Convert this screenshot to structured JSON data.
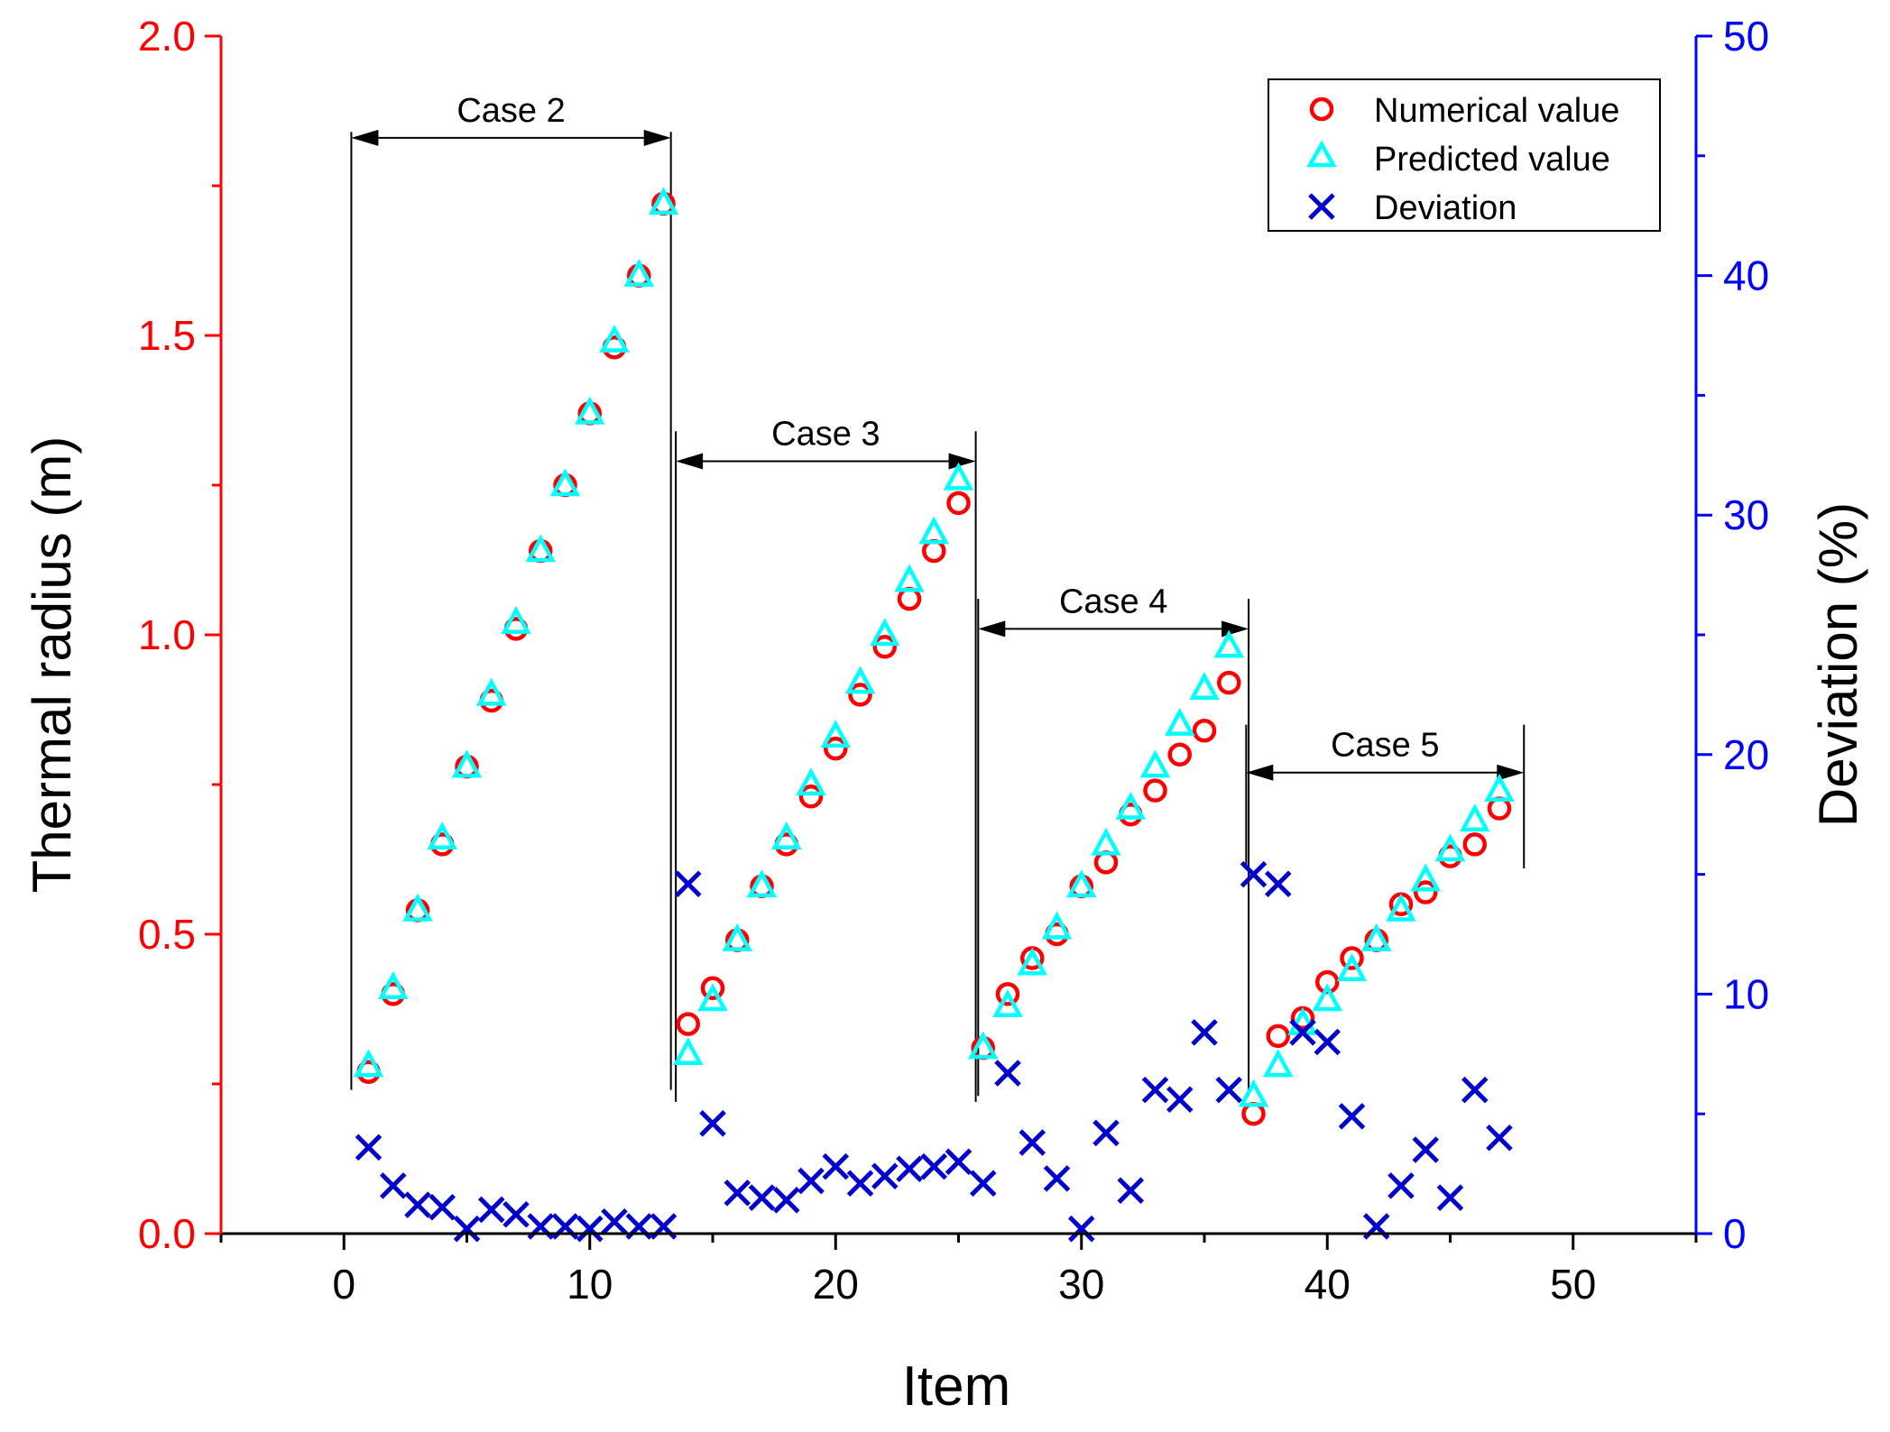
{
  "colors": {
    "left_axis": "#ff0000",
    "right_axis": "#0000ff",
    "numerical": "#ff0000",
    "predicted": "#00ffff",
    "deviation": "#0000cc",
    "text": "#000000"
  },
  "chart_data": {
    "type": "scatter",
    "xlabel": "Item",
    "ylabel_left": "Thermal radius (m)",
    "ylabel_right": "Deviation (%)",
    "xlim": [
      -5,
      55
    ],
    "ylim_left": [
      0.0,
      2.0
    ],
    "ylim_right": [
      0,
      50
    ],
    "x_ticks": [
      0,
      10,
      20,
      30,
      40,
      50
    ],
    "y_left_ticks": [
      "0.0",
      "0.5",
      "1.0",
      "1.5",
      "2.0"
    ],
    "y_left_tick_values": [
      0.0,
      0.5,
      1.0,
      1.5,
      2.0
    ],
    "y_right_ticks": [
      "0",
      "10",
      "20",
      "30",
      "40",
      "50"
    ],
    "y_right_tick_values": [
      0,
      10,
      20,
      30,
      40,
      50
    ],
    "legend": {
      "position": "top-right",
      "entries": [
        "Numerical value",
        "Predicted value",
        "Deviation"
      ]
    },
    "series": [
      {
        "name": "Numerical value",
        "axis": "left",
        "marker": "circle",
        "x": [
          1,
          2,
          3,
          4,
          5,
          6,
          7,
          8,
          9,
          10,
          11,
          12,
          13,
          14,
          15,
          16,
          17,
          18,
          19,
          20,
          21,
          22,
          23,
          24,
          25,
          26,
          27,
          28,
          29,
          30,
          31,
          32,
          33,
          34,
          35,
          36,
          37,
          38,
          39,
          40,
          41,
          42,
          43,
          44,
          45,
          46,
          47
        ],
        "values": [
          0.27,
          0.4,
          0.54,
          0.65,
          0.78,
          0.89,
          1.01,
          1.14,
          1.25,
          1.37,
          1.48,
          1.6,
          1.72,
          0.35,
          0.41,
          0.49,
          0.58,
          0.65,
          0.73,
          0.81,
          0.9,
          0.98,
          1.06,
          1.14,
          1.22,
          0.31,
          0.4,
          0.46,
          0.5,
          0.58,
          0.62,
          0.7,
          0.74,
          0.8,
          0.84,
          0.92,
          0.2,
          0.33,
          0.36,
          0.42,
          0.46,
          0.49,
          0.55,
          0.57,
          0.63,
          0.65,
          0.71
        ]
      },
      {
        "name": "Predicted value",
        "axis": "left",
        "marker": "triangle",
        "x": [
          1,
          2,
          3,
          4,
          5,
          6,
          7,
          8,
          9,
          10,
          11,
          12,
          13,
          14,
          15,
          16,
          17,
          18,
          19,
          20,
          21,
          22,
          23,
          24,
          25,
          26,
          27,
          28,
          29,
          30,
          31,
          32,
          33,
          34,
          35,
          36,
          37,
          38,
          39,
          40,
          41,
          42,
          43,
          44,
          45,
          46,
          47
        ],
        "values": [
          0.28,
          0.41,
          0.54,
          0.66,
          0.78,
          0.9,
          1.02,
          1.14,
          1.25,
          1.37,
          1.49,
          1.6,
          1.72,
          0.3,
          0.39,
          0.49,
          0.58,
          0.66,
          0.75,
          0.83,
          0.92,
          1.0,
          1.09,
          1.17,
          1.26,
          0.31,
          0.38,
          0.45,
          0.51,
          0.58,
          0.65,
          0.71,
          0.78,
          0.85,
          0.91,
          0.98,
          0.23,
          0.28,
          0.35,
          0.39,
          0.44,
          0.49,
          0.54,
          0.59,
          0.64,
          0.69,
          0.74
        ]
      },
      {
        "name": "Deviation",
        "axis": "right",
        "marker": "x",
        "x": [
          1,
          2,
          3,
          4,
          5,
          6,
          7,
          8,
          9,
          10,
          11,
          12,
          13,
          14,
          15,
          16,
          17,
          18,
          19,
          20,
          21,
          22,
          23,
          24,
          25,
          26,
          27,
          28,
          29,
          30,
          31,
          32,
          33,
          34,
          35,
          36,
          37,
          38,
          39,
          40,
          41,
          42,
          43,
          44,
          45,
          46,
          47
        ],
        "values": [
          3.6,
          2.0,
          1.2,
          1.1,
          0.2,
          1.0,
          0.8,
          0.3,
          0.3,
          0.2,
          0.5,
          0.3,
          0.3,
          14.6,
          4.6,
          1.7,
          1.5,
          1.4,
          2.2,
          2.8,
          2.1,
          2.4,
          2.7,
          2.8,
          3.0,
          2.1,
          6.7,
          3.8,
          2.3,
          0.2,
          4.2,
          1.8,
          6.0,
          5.6,
          8.4,
          6.0,
          15.0,
          14.6,
          8.4,
          8.0,
          4.9,
          0.3,
          2.0,
          3.5,
          1.5,
          6.0,
          4.0
        ]
      }
    ],
    "annotations": [
      {
        "label": "Case 2",
        "x_start": 0.3,
        "x_end": 13.3,
        "y": 1.83,
        "y_line_top": 1.84,
        "y_line_bottom": 0.24
      },
      {
        "label": "Case 3",
        "x_start": 13.5,
        "x_end": 25.7,
        "y": 1.29,
        "y_line_top": 1.34,
        "y_line_bottom": 0.22
      },
      {
        "label": "Case 4",
        "x_start": 25.8,
        "x_end": 36.8,
        "y": 1.01,
        "y_line_top": 1.06,
        "y_line_bottom": 0.23
      },
      {
        "label": "Case 5",
        "x_start": 36.7,
        "x_end": 48.0,
        "y": 0.77,
        "y_line_top": 0.85,
        "y_line_bottom": 0.61
      }
    ]
  }
}
